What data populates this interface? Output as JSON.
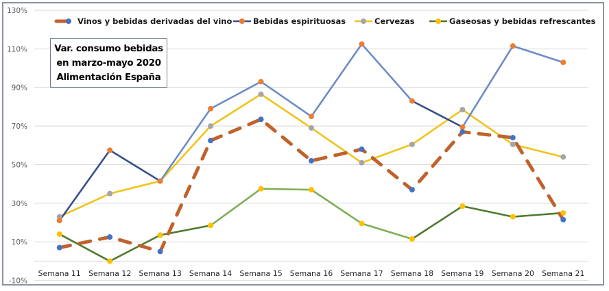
{
  "chart_data": {
    "type": "line",
    "title": [
      "Var. consumo bebidas",
      "en marzo-mayo 2020",
      "Alimentación España"
    ],
    "xlabel": "",
    "ylabel": "",
    "categories": [
      "Semana 11",
      "Semana 12",
      "Semana 13",
      "Semana 14",
      "Semana 15",
      "Semana 16",
      "Semana 17",
      "Semana 18",
      "Semana 19",
      "Semana 20",
      "Semana 21"
    ],
    "ylim": [
      -10,
      130
    ],
    "yticks": [
      -10,
      10,
      30,
      50,
      70,
      90,
      110,
      130
    ],
    "ytick_labels": [
      "-10%",
      "10%",
      "30%",
      "50%",
      "70%",
      "90%",
      "110%",
      "130%"
    ],
    "x_axis_crosses_at": 0,
    "grid": true,
    "legend_position": "top",
    "series": [
      {
        "name": "Vinos y bebidas derivadas del vino",
        "values": [
          7,
          12.5,
          5,
          62.5,
          73.5,
          52,
          58,
          37,
          67,
          64,
          21.5
        ],
        "line_color": "#C0622B",
        "marker_color": "#4472C4",
        "dashed": true
      },
      {
        "name": "Bebidas espirituosas",
        "values": [
          21,
          57.5,
          41.5,
          79,
          93,
          75,
          112.5,
          83,
          69.5,
          111.5,
          103
        ],
        "line_color": "#34508F",
        "line_color_alt": "#6B8CC7",
        "marker_color": "#ED7D31",
        "dashed": false
      },
      {
        "name": "Cervezas",
        "values": [
          23,
          35,
          41.5,
          70,
          86.5,
          69,
          51,
          60.5,
          78.5,
          60.5,
          54
        ],
        "line_color": "#F2C319",
        "marker_color": "#A5A5A5",
        "dashed": false
      },
      {
        "name": "Gaseosas y bebidas refrescantes",
        "values": [
          14,
          0,
          13.5,
          18.5,
          37.5,
          37,
          19.5,
          11.5,
          28.5,
          23,
          25
        ],
        "line_color": "#4F7A2C",
        "line_color_alt": "#7DAF55",
        "marker_color": "#FFC000",
        "dashed": false
      }
    ]
  },
  "colors": {
    "grid": "#D9D9D9",
    "frame": "#8A939E"
  }
}
